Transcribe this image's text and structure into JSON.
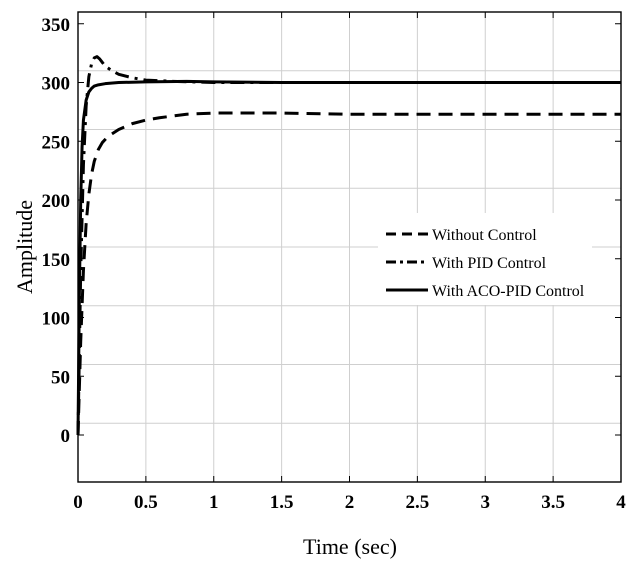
{
  "chart_data": {
    "type": "line",
    "xlabel": "Time (sec)",
    "ylabel": "Amplitude",
    "xlim": [
      0,
      4
    ],
    "ylim": [
      -40,
      360
    ],
    "xticks": [
      0,
      0.5,
      1,
      1.5,
      2,
      2.5,
      3,
      3.5,
      4
    ],
    "xtick_labels": [
      "0",
      "0.5",
      "1",
      "1.5",
      "2",
      "2.5",
      "3",
      "3.5",
      "4"
    ],
    "yticks": [
      0,
      50,
      100,
      150,
      200,
      250,
      300,
      350
    ],
    "ytick_labels": [
      "0",
      "50",
      "100",
      "150",
      "200",
      "250",
      "300",
      "350"
    ],
    "grid": true,
    "legend_position": "center-right",
    "series": [
      {
        "name": "Without Control",
        "style": "dashed",
        "color": "#000000",
        "x": [
          0,
          0.02,
          0.04,
          0.06,
          0.08,
          0.1,
          0.12,
          0.15,
          0.18,
          0.22,
          0.3,
          0.4,
          0.5,
          0.6,
          0.8,
          1.0,
          1.2,
          1.5,
          2.0,
          2.5,
          3.0,
          3.5,
          4.0
        ],
        "values": [
          0,
          80,
          140,
          180,
          205,
          222,
          233,
          243,
          249,
          254,
          260,
          265,
          268,
          270,
          273,
          274,
          274,
          274,
          273,
          273,
          273,
          273,
          273
        ]
      },
      {
        "name": "With PID Control",
        "style": "dash-dot",
        "color": "#000000",
        "x": [
          0,
          0.02,
          0.04,
          0.06,
          0.08,
          0.1,
          0.12,
          0.14,
          0.16,
          0.18,
          0.2,
          0.25,
          0.3,
          0.4,
          0.5,
          0.7,
          1.0,
          1.5,
          2.0,
          3.0,
          4.0
        ],
        "values": [
          0,
          140,
          230,
          280,
          305,
          316,
          321,
          322,
          320,
          317,
          314,
          310,
          307,
          304,
          302,
          301,
          300,
          300,
          300,
          300,
          300
        ]
      },
      {
        "name": "With ACO-PID Control",
        "style": "solid",
        "color": "#000000",
        "x": [
          0,
          0.01,
          0.02,
          0.03,
          0.04,
          0.06,
          0.08,
          0.1,
          0.12,
          0.15,
          0.2,
          0.3,
          0.5,
          0.8,
          1.0,
          1.5,
          2.0,
          3.0,
          4.0
        ],
        "values": [
          0,
          120,
          200,
          245,
          268,
          285,
          292,
          295,
          297,
          298,
          299,
          300,
          300.5,
          301,
          300.5,
          300,
          300,
          300,
          300
        ]
      }
    ]
  }
}
